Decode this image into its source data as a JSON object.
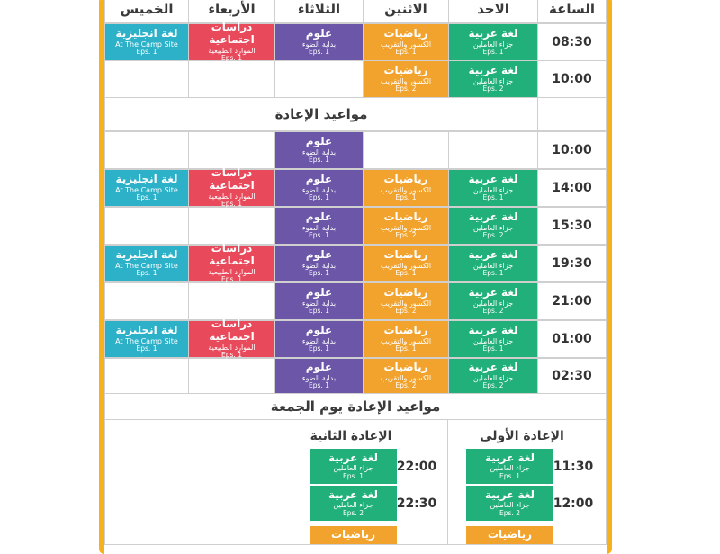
{
  "headers": [
    "الساعة",
    "الاحد",
    "الاثنين",
    "الثلاثاء",
    "الأربعاء",
    "الخميس"
  ],
  "subjects": {
    "arabic": {
      "title": "لغة عربية",
      "sub": "جزاء العاملين"
    },
    "math": {
      "title": "رياضيات",
      "sub": "الكسور والتقريب"
    },
    "science": {
      "title": "علوم",
      "sub": "بداية الضوء"
    },
    "social": {
      "title": "دراسات اجتماعية",
      "sub": "الموارد الطبيعية"
    },
    "english": {
      "title": "لغة انجليزية",
      "sub": "At The Camp Site"
    }
  },
  "eps": {
    "e1": "Eps. 1",
    "e2": "Eps. 2"
  },
  "top_times": [
    "08:30",
    "10:00"
  ],
  "replay_title": "مواعيد الإعادة",
  "replay_times": [
    "10:00",
    "14:00",
    "15:30",
    "19:30",
    "21:00",
    "01:00",
    "02:30"
  ],
  "friday_title": "مواعيد الإعادة يوم الجمعة",
  "friday": {
    "first_title": "الإعادة الأولى",
    "second_title": "الإعادة الثانية",
    "first_times": [
      "11:30",
      "12:00"
    ],
    "second_times": [
      "22:00",
      "22:30"
    ]
  }
}
